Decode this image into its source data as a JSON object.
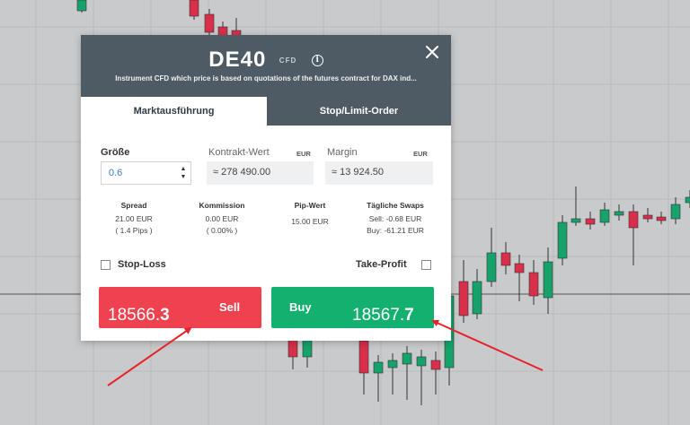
{
  "instrument": {
    "symbol": "DE40",
    "type_badge": "CFD",
    "description": "Instrument CFD which price is based on quotations of the futures contract for DAX ind..."
  },
  "tabs": [
    {
      "label": "Marktausführung",
      "active": true
    },
    {
      "label": "Stop/Limit-Order",
      "active": false
    }
  ],
  "fields": {
    "size_label": "Größe",
    "size_value": "0.6",
    "contract_label": "Kontrakt-Wert",
    "contract_currency": "EUR",
    "contract_value": "≈ 278 490.00",
    "margin_label": "Margin",
    "margin_currency": "EUR",
    "margin_value": "≈ 13 924.50"
  },
  "stats": {
    "spread_label": "Spread",
    "spread_value": "21.00 EUR",
    "spread_pips": "( 1.4 Pips )",
    "commission_label": "Kommission",
    "commission_value": "0.00 EUR",
    "commission_pct": "( 0.00% )",
    "pip_label": "Pip-Wert",
    "pip_value": "15.00 EUR",
    "swaps_label": "Tägliche Swaps",
    "swap_sell": "Sell: -0.68 EUR",
    "swap_buy": "Buy: -61.21 EUR"
  },
  "options": {
    "stop_loss_label": "Stop-Loss",
    "take_profit_label": "Take-Profit"
  },
  "trade": {
    "sell_label": "Sell",
    "sell_price_main": "18566.",
    "sell_price_last": "3",
    "buy_label": "Buy",
    "buy_price_main": "18567.",
    "buy_price_last": "7"
  },
  "colors": {
    "header": "#4e5a64",
    "sell": "#f0414f",
    "buy": "#13b070",
    "candle_up": "#16a26a",
    "candle_down": "#d8304a",
    "arrow": "#e8222a"
  },
  "icons": {
    "info": "info-icon",
    "close": "close-icon"
  }
}
